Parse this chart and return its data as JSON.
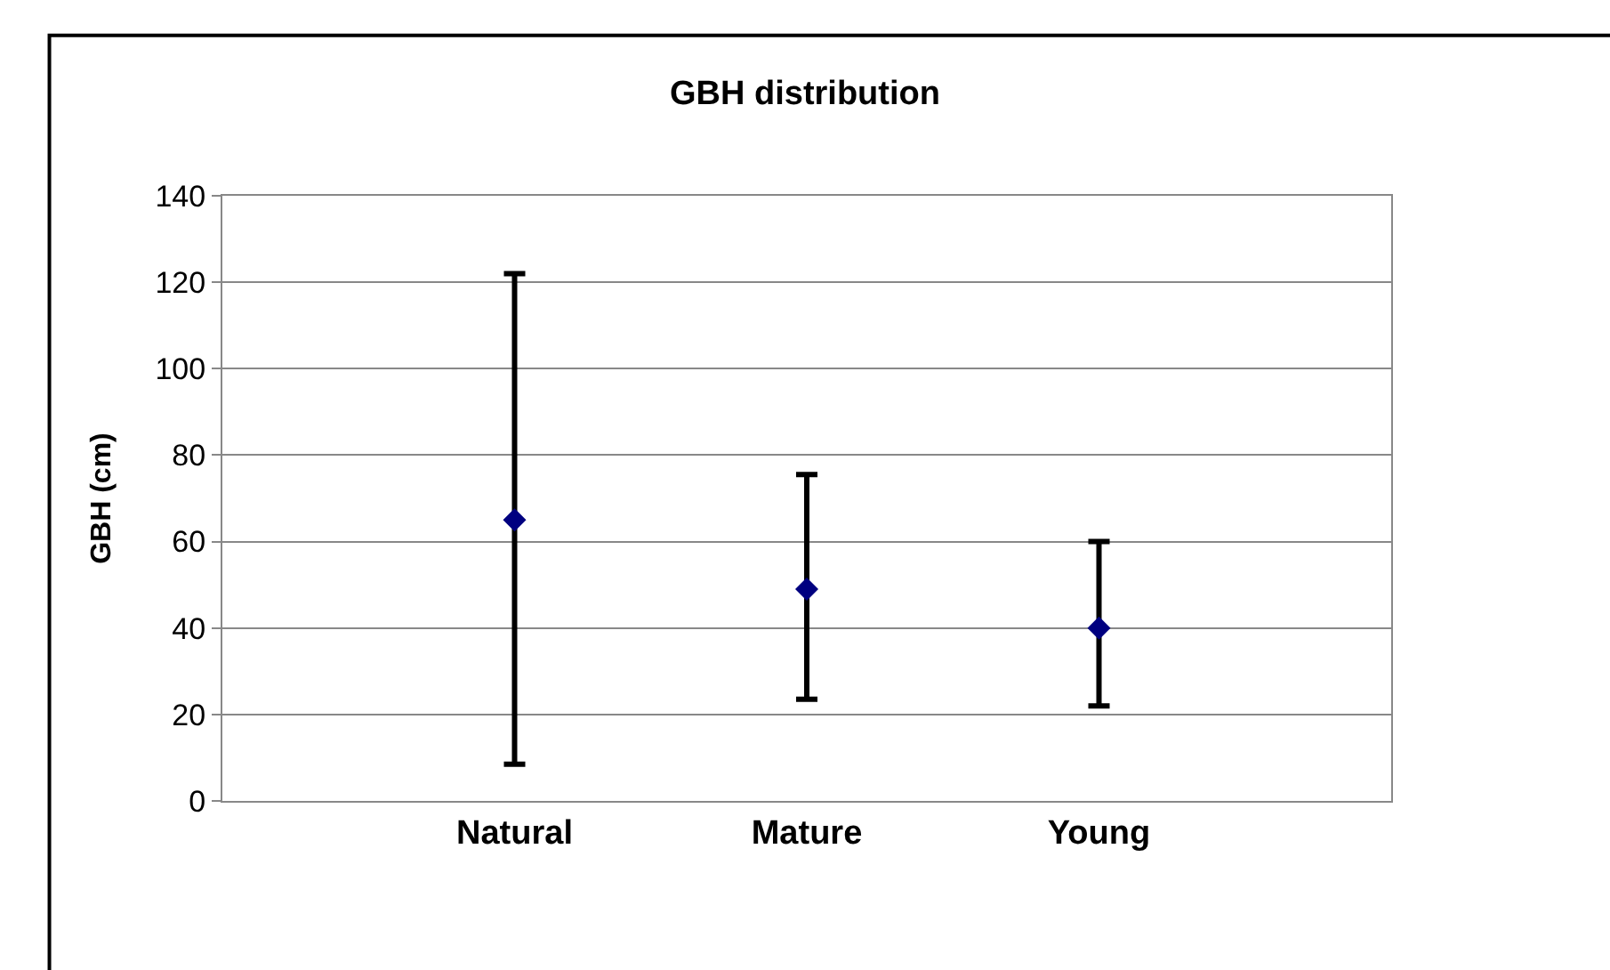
{
  "chart_data": {
    "type": "scatter",
    "title": "GBH distribution",
    "ylabel": "GBH (cm)",
    "categories": [
      "Natural",
      "Mature",
      "Young"
    ],
    "values": [
      65,
      49,
      40
    ],
    "errors": [
      [
        8.5,
        122
      ],
      [
        23.5,
        75.5
      ],
      [
        22,
        60
      ]
    ],
    "color": "#000080",
    "marker": "diamond",
    "ylim": [
      0,
      140
    ],
    "yticks": [
      0,
      20,
      40,
      60,
      80,
      100,
      120,
      140
    ],
    "grid": "y"
  }
}
